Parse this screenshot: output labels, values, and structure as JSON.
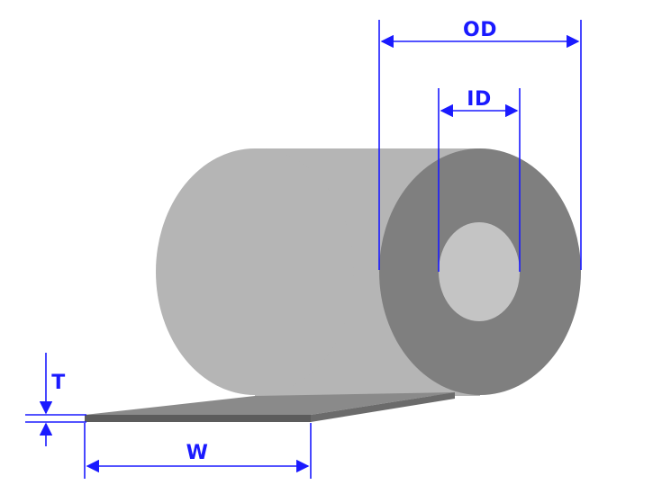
{
  "labels": {
    "od": "OD",
    "id": "ID",
    "t": "T",
    "w": "W"
  },
  "colors": {
    "dimension": "#1a1aff",
    "roll_body": "#b5b5b5",
    "roll_face": "#7f7f7f",
    "core_hole": "#c4c4c4",
    "strip_top": "#8a8a8a",
    "strip_edge": "#5c5c5c"
  }
}
